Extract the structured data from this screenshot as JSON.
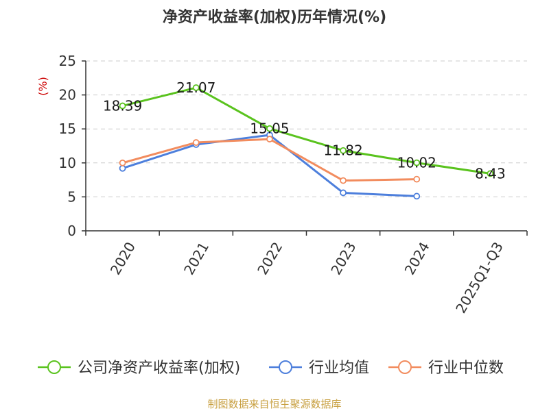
{
  "chart_data": {
    "type": "line",
    "title": "净资产收益率(加权)历年情况(%)",
    "ylabel": "(%)",
    "xlabel": "",
    "categories": [
      "2020",
      "2021",
      "2022",
      "2023",
      "2024",
      "2025Q1-Q3"
    ],
    "ylim": [
      0,
      25
    ],
    "yticks": [
      0,
      5,
      10,
      15,
      20,
      25
    ],
    "grid": true,
    "legend_position": "bottom",
    "series": [
      {
        "name": "公司净资产收益率(加权)",
        "color": "#5ac31e",
        "values": [
          18.39,
          21.07,
          15.05,
          11.82,
          10.02,
          8.43
        ],
        "labels": [
          "18.39",
          "21.07",
          "15.05",
          "11.82",
          "10.02",
          "8.43"
        ]
      },
      {
        "name": "行业均值",
        "color": "#4d7fdc",
        "values": [
          9.2,
          12.7,
          14.1,
          5.6,
          5.1,
          null
        ]
      },
      {
        "name": "行业中位数",
        "color": "#f28c5e",
        "values": [
          10.0,
          13.0,
          13.5,
          7.4,
          7.6,
          null
        ]
      }
    ]
  },
  "source_text": "制图数据来自恒生聚源数据库",
  "colors": {
    "ylabel": "#cc0000",
    "source": "#c8a041",
    "axis": "#333333",
    "grid": "#cccccc"
  }
}
